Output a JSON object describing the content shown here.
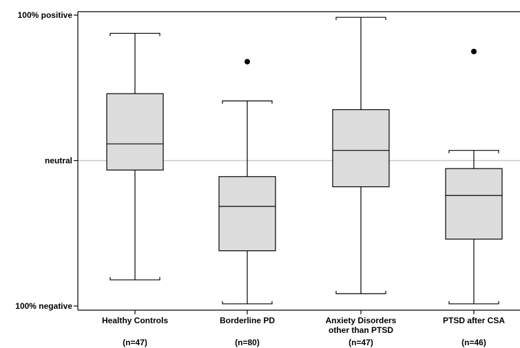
{
  "chart_data": {
    "type": "box",
    "title": "",
    "xlabel": "",
    "ylabel": "",
    "ylim": [
      -100,
      100
    ],
    "y_ticks": [
      {
        "value": 100,
        "label": "100% positive"
      },
      {
        "value": 0,
        "label": "neutral"
      },
      {
        "value": -100,
        "label": "100% negative"
      }
    ],
    "reference_line": {
      "value": 0,
      "color": "#c8c8c8"
    },
    "box_fill": "#dcdcdc",
    "grid": false,
    "series": [
      {
        "category": "Healthy Controls",
        "n_label": "(n=47)",
        "whisker_low": -82,
        "q1": -6.5,
        "median": 11.5,
        "q3": 46,
        "whisker_high": 87.5,
        "outliers": []
      },
      {
        "category": "Borderline PD",
        "n_label": "(n=80)",
        "whisker_low": -98.5,
        "q1": -62,
        "median": -31.5,
        "q3": -11,
        "whisker_high": 41,
        "outliers": [
          68
        ]
      },
      {
        "category": "Anxiety Disorders other than PTSD",
        "n_label": "(n=47)",
        "whisker_low": -91.5,
        "q1": -18,
        "median": 7,
        "q3": 35,
        "whisker_high": 98.5,
        "outliers": []
      },
      {
        "category": "PTSD after CSA",
        "n_label": "(n=46)",
        "whisker_low": -98.5,
        "q1": -54,
        "median": -24,
        "q3": -5.5,
        "whisker_high": 7,
        "outliers": [
          75
        ]
      }
    ]
  }
}
